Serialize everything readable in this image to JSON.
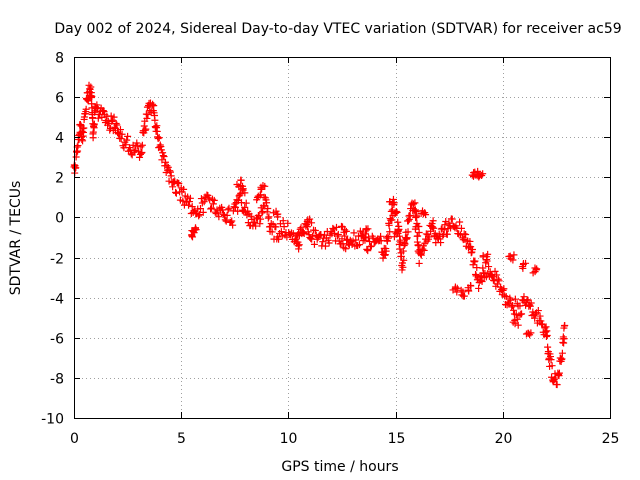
{
  "chart_data": {
    "type": "scatter",
    "title": "Day 002 of 2024, Sidereal Day-to-day VTEC variation (SDTVAR) for receiver ac59",
    "xlabel": "GPS time / hours",
    "ylabel": "SDTVAR / TECUs",
    "xlim": [
      0,
      25
    ],
    "ylim": [
      -10,
      8
    ],
    "x_ticks": [
      0,
      5,
      10,
      15,
      20,
      25
    ],
    "y_ticks": [
      -10,
      -8,
      -6,
      -4,
      -2,
      0,
      2,
      4,
      6,
      8
    ],
    "x_tick_labels": [
      "0",
      "5",
      "10",
      "15",
      "20",
      "25"
    ],
    "y_tick_labels": [
      "-10",
      "-8",
      "-6",
      "-4",
      "-2",
      "0",
      "2",
      "4",
      "6",
      "8"
    ],
    "grid": true,
    "marker": "+",
    "series": [
      {
        "name": "SDTVAR",
        "color": "#ff0000",
        "trend": [
          [
            0.0,
            2.3
          ],
          [
            0.1,
            2.8
          ],
          [
            0.2,
            3.8
          ],
          [
            0.3,
            4.6
          ],
          [
            0.4,
            3.9
          ],
          [
            0.5,
            5.0
          ],
          [
            0.6,
            5.8
          ],
          [
            0.7,
            6.4
          ],
          [
            0.8,
            6.3
          ],
          [
            0.9,
            4.2
          ],
          [
            1.0,
            5.5
          ],
          [
            1.2,
            5.2
          ],
          [
            1.4,
            4.9
          ],
          [
            1.6,
            4.6
          ],
          [
            1.8,
            4.8
          ],
          [
            2.0,
            4.3
          ],
          [
            2.2,
            4.0
          ],
          [
            2.5,
            3.7
          ],
          [
            2.8,
            3.4
          ],
          [
            3.1,
            3.2
          ],
          [
            3.3,
            4.5
          ],
          [
            3.5,
            5.5
          ],
          [
            3.7,
            5.6
          ],
          [
            3.9,
            4.0
          ],
          [
            4.1,
            3.0
          ],
          [
            4.3,
            2.5
          ],
          [
            4.5,
            2.0
          ],
          [
            4.7,
            1.6
          ],
          [
            5.0,
            1.2
          ],
          [
            5.3,
            0.7
          ],
          [
            5.6,
            0.4
          ],
          [
            5.9,
            0.5
          ],
          [
            6.2,
            0.8
          ],
          [
            6.5,
            0.6
          ],
          [
            6.8,
            0.4
          ],
          [
            7.1,
            0.2
          ],
          [
            7.4,
            0.0
          ],
          [
            7.7,
            0.9
          ],
          [
            8.0,
            0.5
          ],
          [
            8.3,
            -0.4
          ],
          [
            8.6,
            -0.2
          ],
          [
            8.9,
            0.8
          ],
          [
            9.2,
            -0.6
          ],
          [
            9.5,
            -0.8
          ],
          [
            9.8,
            -0.5
          ],
          [
            10.1,
            -0.7
          ],
          [
            10.4,
            -1.0
          ],
          [
            10.7,
            -0.4
          ],
          [
            11.0,
            -0.8
          ],
          [
            11.3,
            -1.0
          ],
          [
            11.6,
            -1.2
          ],
          [
            11.9,
            -1.0
          ],
          [
            12.2,
            -0.8
          ],
          [
            12.5,
            -1.1
          ],
          [
            12.8,
            -1.3
          ],
          [
            13.1,
            -1.1
          ],
          [
            13.4,
            -1.0
          ],
          [
            13.7,
            -1.3
          ],
          [
            14.0,
            -1.0
          ],
          [
            14.3,
            -1.2
          ],
          [
            14.5,
            -2.0
          ],
          [
            14.7,
            -0.5
          ],
          [
            14.9,
            0.5
          ],
          [
            15.1,
            -0.2
          ],
          [
            15.3,
            -2.4
          ],
          [
            15.5,
            -1.0
          ],
          [
            15.7,
            0.5
          ],
          [
            15.9,
            0.8
          ],
          [
            16.1,
            -2.0
          ],
          [
            16.3,
            -1.5
          ],
          [
            16.5,
            -1.0
          ],
          [
            16.7,
            -0.3
          ],
          [
            16.9,
            -1.3
          ],
          [
            17.1,
            -1.0
          ],
          [
            17.3,
            -0.6
          ],
          [
            17.6,
            -0.2
          ],
          [
            17.9,
            -0.5
          ],
          [
            18.2,
            -0.8
          ],
          [
            18.5,
            -1.6
          ],
          [
            18.7,
            -2.5
          ],
          [
            18.9,
            -3.3
          ],
          [
            19.1,
            -2.8
          ],
          [
            19.3,
            -2.5
          ],
          [
            19.6,
            -3.0
          ],
          [
            19.9,
            -3.6
          ],
          [
            20.2,
            -4.2
          ],
          [
            20.5,
            -4.4
          ],
          [
            20.8,
            -4.6
          ],
          [
            21.1,
            -4.2
          ],
          [
            21.4,
            -4.8
          ],
          [
            21.7,
            -5.0
          ],
          [
            22.0,
            -5.6
          ],
          [
            22.2,
            -7.2
          ],
          [
            22.4,
            -8.2
          ],
          [
            22.6,
            -8.0
          ],
          [
            22.8,
            -6.5
          ],
          [
            22.9,
            -5.2
          ]
        ],
        "clusters": [
          [
            18.7,
            2.1
          ],
          [
            18.9,
            2.2
          ],
          [
            19.0,
            2.1
          ],
          [
            5.6,
            -0.6
          ],
          [
            5.5,
            -0.8
          ],
          [
            8.8,
            1.5
          ],
          [
            8.6,
            1.0
          ],
          [
            7.7,
            1.7
          ],
          [
            7.9,
            1.4
          ],
          [
            17.8,
            -3.6
          ],
          [
            18.1,
            -3.8
          ],
          [
            18.4,
            -3.5
          ],
          [
            21.0,
            -2.4
          ],
          [
            20.4,
            -2.0
          ],
          [
            19.2,
            -2.0
          ],
          [
            21.5,
            -2.6
          ],
          [
            21.2,
            -5.8
          ],
          [
            20.6,
            -5.2
          ],
          [
            15.0,
            -0.8
          ],
          [
            14.8,
            0.8
          ],
          [
            16.0,
            -0.6
          ],
          [
            16.3,
            0.3
          ],
          [
            10.5,
            -1.4
          ],
          [
            9.4,
            0.2
          ],
          [
            11.0,
            -0.2
          ],
          [
            13.6,
            -0.7
          ],
          [
            12.6,
            -0.6
          ]
        ]
      }
    ]
  }
}
